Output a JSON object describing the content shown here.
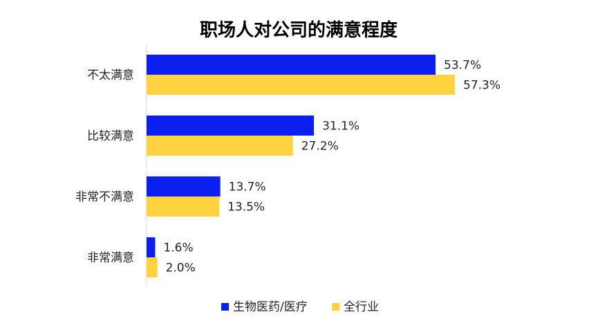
{
  "chart_data": {
    "type": "bar",
    "orientation": "horizontal",
    "title": "职场人对公司的满意程度",
    "categories": [
      "不太满意",
      "比较满意",
      "非常不满意",
      "非常满意"
    ],
    "series": [
      {
        "name": "生物医药/医疗",
        "color": "#0a1ff0",
        "values": [
          53.7,
          31.1,
          13.7,
          1.6
        ],
        "labels": [
          "53.7%",
          "31.1%",
          "13.7%",
          "1.6%"
        ]
      },
      {
        "name": "全行业",
        "color": "#ffd23f",
        "values": [
          57.3,
          27.2,
          13.5,
          2.0
        ],
        "labels": [
          "57.3%",
          "27.2%",
          "13.5%",
          "2.0%"
        ]
      }
    ],
    "xlim": [
      0,
      60
    ],
    "grid": false,
    "legend_position": "bottom"
  }
}
